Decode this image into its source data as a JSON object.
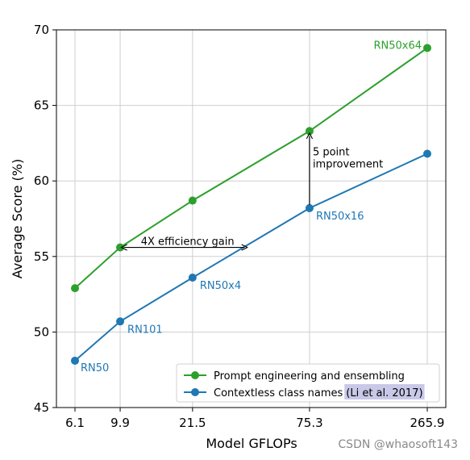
{
  "chart_data": {
    "type": "line",
    "x": [
      6.1,
      9.9,
      21.5,
      75.3,
      265.9
    ],
    "x_tick_labels": [
      "6.1",
      "9.9",
      "21.5",
      "75.3",
      "265.9"
    ],
    "xlabel": "Model GFLOPs",
    "ylabel": "Average Score (%)",
    "ylim": [
      45,
      70
    ],
    "y_ticks": [
      45,
      50,
      55,
      60,
      65,
      70
    ],
    "x_scale": "log",
    "grid": true,
    "legend_position": "lower right",
    "series": [
      {
        "name": "Prompt engineering and ensembling",
        "color": "#2ca02c",
        "values": [
          52.9,
          55.6,
          58.7,
          63.3,
          68.8
        ],
        "point_labels": [
          "",
          "",
          "",
          "",
          "RN50x64"
        ]
      },
      {
        "name": "Contextless class names",
        "name_citation": "(Li et al. 2017)",
        "color": "#1f77b4",
        "values": [
          48.1,
          50.7,
          53.6,
          58.2,
          61.8
        ],
        "point_labels": [
          "RN50",
          "RN101",
          "RN50x4",
          "RN50x16",
          ""
        ]
      }
    ],
    "annotations": {
      "efficiency": "4X efficiency gain",
      "improvement_line1": "5 point",
      "improvement_line2": "improvement"
    }
  },
  "watermark": "CSDN @whaosoft143"
}
